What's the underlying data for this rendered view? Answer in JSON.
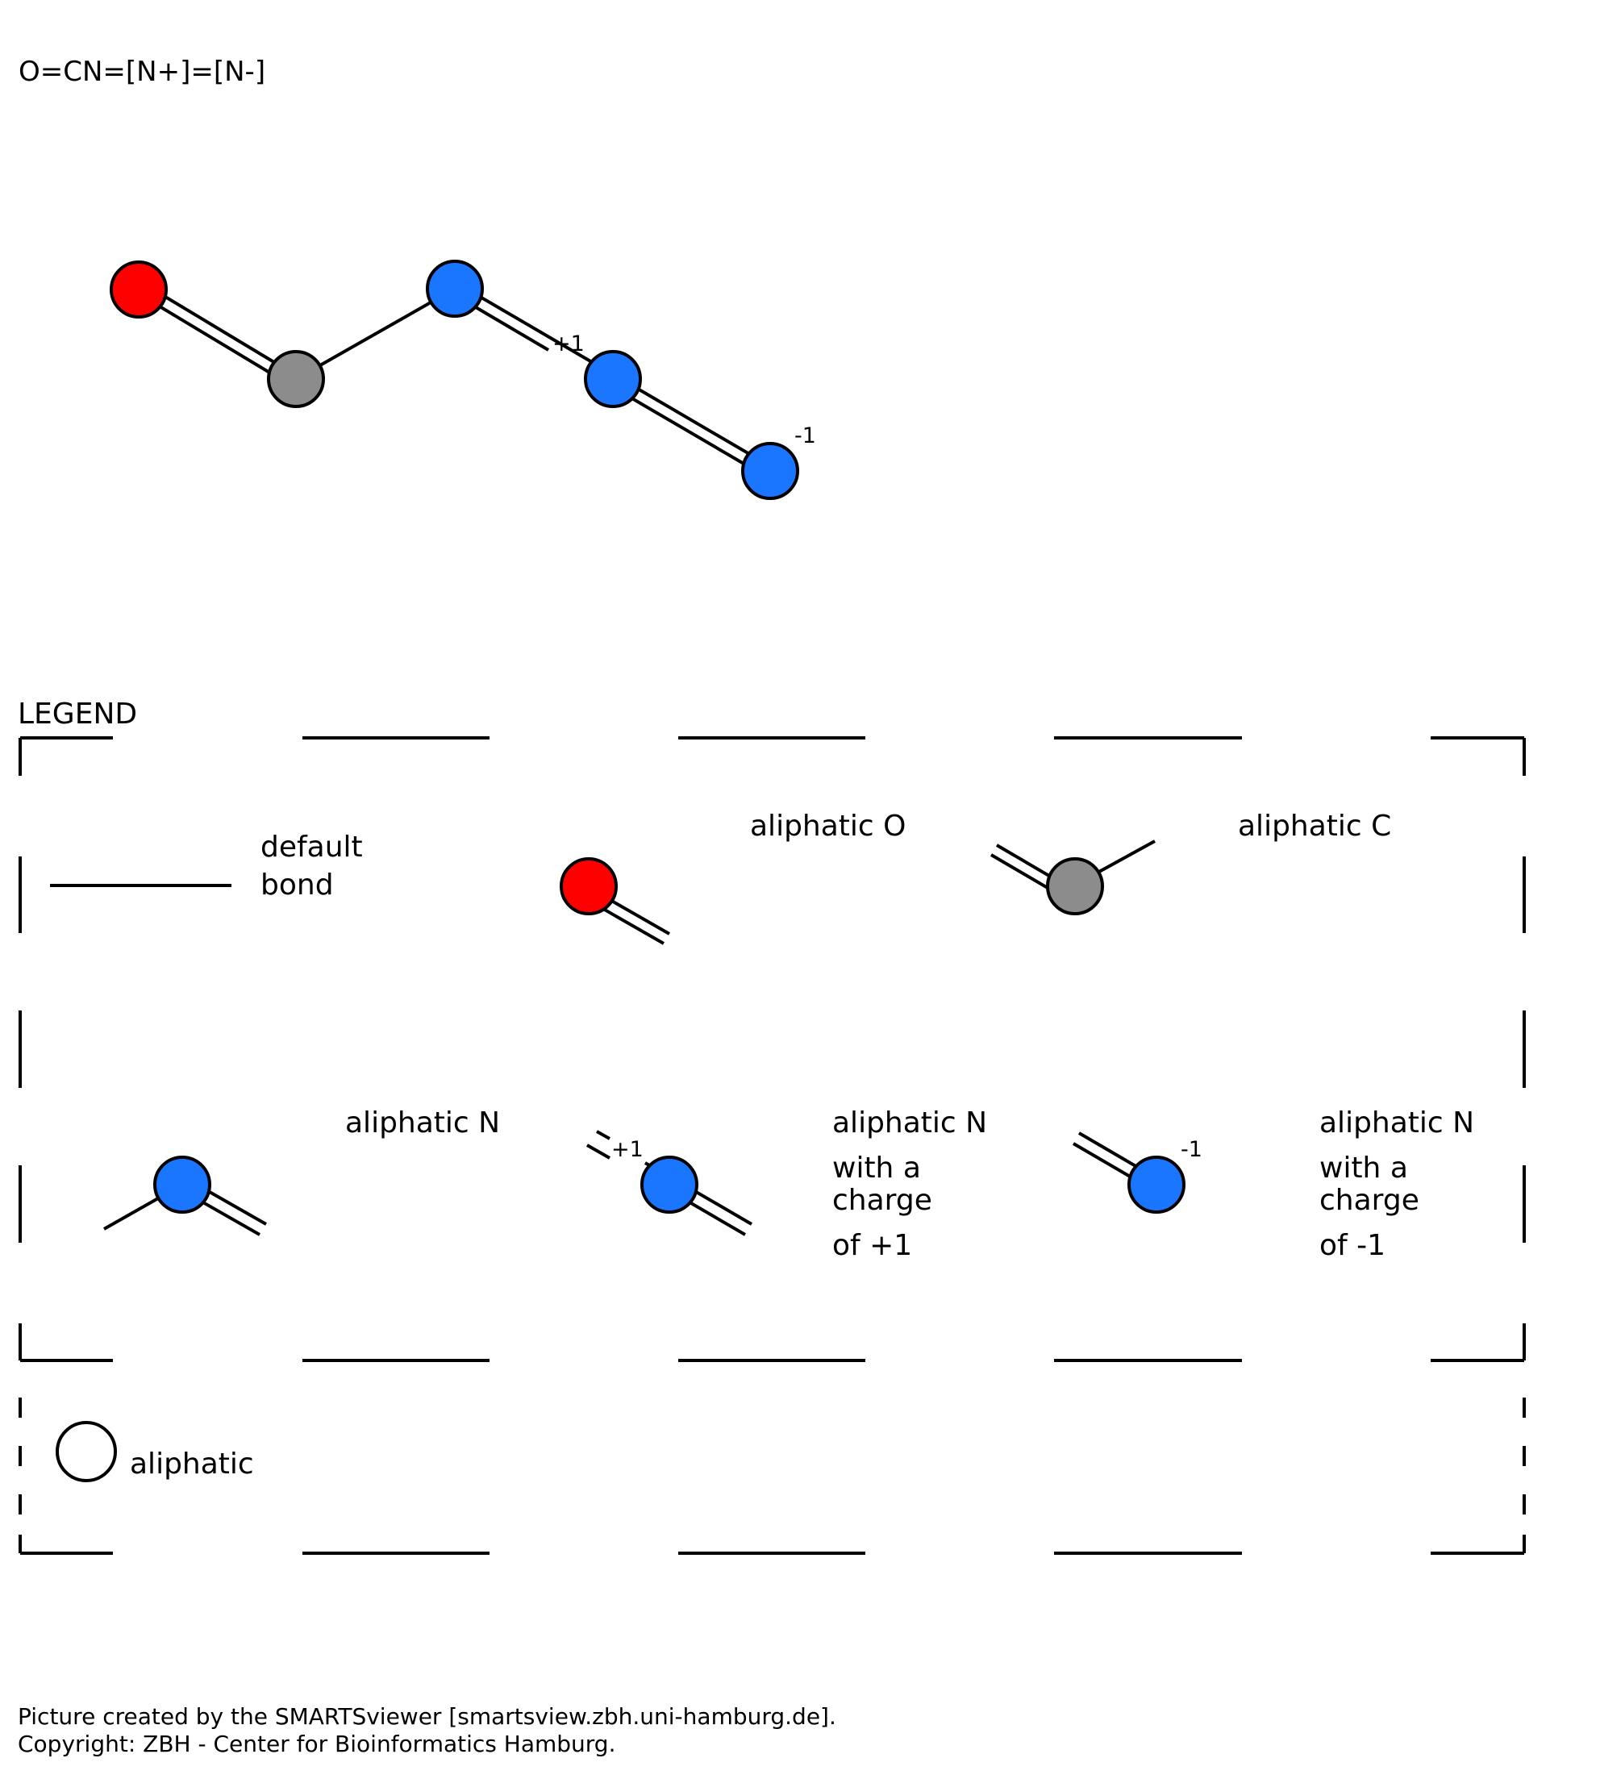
{
  "smiles": "O=CN=[N+]=[N-]",
  "colors": {
    "oxygen": "#ff0000",
    "carbon": "#8c8c8c",
    "nitrogen": "#1a75ff",
    "background": "#ffffff",
    "line": "#000000"
  },
  "molecule": {
    "atoms": [
      {
        "element": "O",
        "color_key": "oxygen",
        "charge": ""
      },
      {
        "element": "C",
        "color_key": "carbon",
        "charge": ""
      },
      {
        "element": "N",
        "color_key": "nitrogen",
        "charge": ""
      },
      {
        "element": "N",
        "color_key": "nitrogen",
        "charge": "+1"
      },
      {
        "element": "N",
        "color_key": "nitrogen",
        "charge": "-1"
      }
    ],
    "bonds": [
      {
        "from": 0,
        "to": 1,
        "order": 2
      },
      {
        "from": 1,
        "to": 2,
        "order": 1
      },
      {
        "from": 2,
        "to": 3,
        "order": 2
      },
      {
        "from": 3,
        "to": 4,
        "order": 2
      }
    ]
  },
  "legend": {
    "title": "LEGEND",
    "items": {
      "default_bond": {
        "line1": "default",
        "line2": "bond"
      },
      "aliphatic_o": {
        "label": "aliphatic O"
      },
      "aliphatic_c": {
        "label": "aliphatic C"
      },
      "aliphatic_n": {
        "label": "aliphatic N"
      },
      "aliphatic_n_plus": {
        "line1": "aliphatic N",
        "line2": "with a",
        "line3": "charge",
        "line4": "of +1",
        "charge": "+1"
      },
      "aliphatic_n_minus": {
        "line1": "aliphatic N",
        "line2": "with a",
        "line3": "charge",
        "line4": "of -1",
        "charge": "-1"
      },
      "aliphatic": {
        "label": "aliphatic"
      }
    }
  },
  "footer": {
    "line1": "Picture created by the SMARTSviewer [smartsview.zbh.uni-hamburg.de].",
    "line2": "Copyright: ZBH - Center for Bioinformatics Hamburg."
  }
}
